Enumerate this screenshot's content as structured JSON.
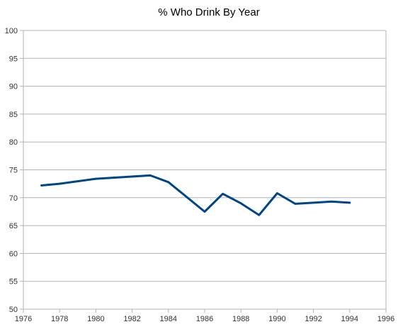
{
  "chart_data": {
    "type": "line",
    "title": "% Who Drink By Year",
    "xlabel": "",
    "ylabel": "",
    "xlim": [
      1976,
      1996
    ],
    "ylim": [
      50,
      100
    ],
    "x_ticks": [
      1976,
      1978,
      1980,
      1982,
      1984,
      1986,
      1988,
      1990,
      1992,
      1994,
      1996
    ],
    "y_ticks": [
      50,
      55,
      60,
      65,
      70,
      75,
      80,
      85,
      90,
      95,
      100
    ],
    "x_tick_labels": [
      "1976",
      "1978",
      "1980",
      "1982",
      "1984",
      "1986",
      "1988",
      "1990",
      "1992",
      "1994",
      "1996"
    ],
    "y_tick_labels": [
      "50",
      "55",
      "60",
      "65",
      "70",
      "75",
      "80",
      "85",
      "90",
      "95",
      "100"
    ],
    "grid": true,
    "legend": "none",
    "series": [
      {
        "x": [
          1977,
          1978,
          1980,
          1983,
          1984,
          1986,
          1987,
          1988,
          1989,
          1990,
          1991,
          1992,
          1993,
          1994
        ],
        "y": [
          72.2,
          72.5,
          73.4,
          74.0,
          72.8,
          67.5,
          70.7,
          69.0,
          66.9,
          70.8,
          68.9,
          69.1,
          69.3,
          69.1
        ],
        "color": "#004586"
      }
    ]
  }
}
